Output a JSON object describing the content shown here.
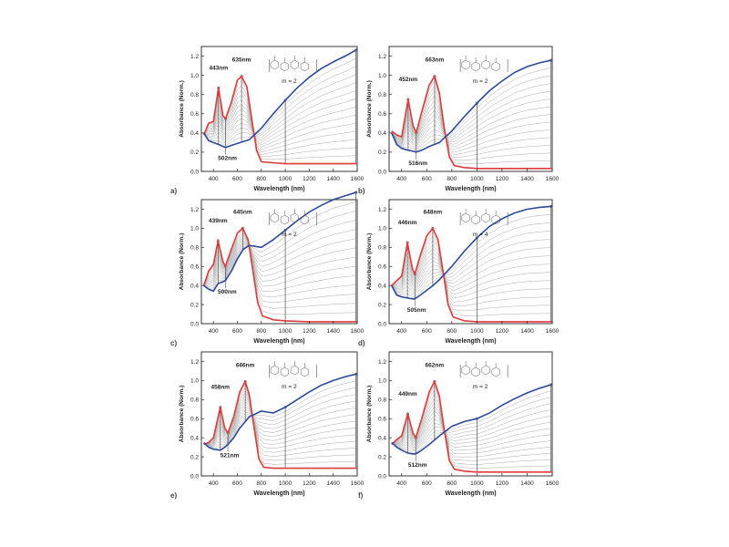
{
  "figure": {
    "panels": [
      {
        "label": "a)",
        "peak1": "443nm",
        "peak2": "635nm",
        "valley": "502nm",
        "m_label": "m = 2"
      },
      {
        "label": "b)",
        "peak1": "452nm",
        "peak2": "663nm",
        "valley": "516nm",
        "m_label": "m = 2"
      },
      {
        "label": "c)",
        "peak1": "439nm",
        "peak2": "645nm",
        "valley": "500nm",
        "m_label": "m = 2"
      },
      {
        "label": "d)",
        "peak1": "446nm",
        "peak2": "648nm",
        "valley": "505nm",
        "m_label": "m = 4"
      },
      {
        "label": "e)",
        "peak1": "458nm",
        "peak2": "666nm",
        "valley": "521nm",
        "m_label": "m = 2"
      },
      {
        "label": "f)",
        "peak1": "449nm",
        "peak2": "662nm",
        "valley": "512nm",
        "m_label": "m = 2"
      }
    ]
  },
  "chart_data": [
    {
      "type": "line",
      "xlabel": "Wavelength (nm)",
      "ylabel": "Absorbance (Norm.)",
      "xlim": [
        300,
        1600
      ],
      "ylim": [
        0,
        1.3
      ],
      "x_ticks": [
        400,
        600,
        800,
        1000,
        1200,
        1400,
        1600
      ],
      "y_ticks": [
        0.0,
        0.2,
        0.4,
        0.6,
        0.8,
        1.0,
        1.2
      ],
      "series": [
        {
          "color": "#e03a3a",
          "x": [
            320,
            360,
            400,
            443,
            480,
            502,
            550,
            600,
            635,
            680,
            720,
            760,
            800,
            900,
            1000,
            1200,
            1400,
            1600
          ],
          "y": [
            0.38,
            0.5,
            0.52,
            0.87,
            0.58,
            0.55,
            0.72,
            0.95,
            0.99,
            0.88,
            0.55,
            0.22,
            0.1,
            0.09,
            0.08,
            0.08,
            0.08,
            0.08
          ]
        },
        {
          "color": "#2c4a9a",
          "x": [
            320,
            360,
            400,
            443,
            480,
            502,
            550,
            600,
            650,
            700,
            800,
            900,
            1000,
            1100,
            1200,
            1300,
            1400,
            1500,
            1600
          ],
          "y": [
            0.4,
            0.32,
            0.3,
            0.28,
            0.26,
            0.25,
            0.27,
            0.29,
            0.31,
            0.33,
            0.45,
            0.6,
            0.74,
            0.87,
            0.98,
            1.07,
            1.14,
            1.2,
            1.27
          ]
        }
      ]
    },
    {
      "type": "line",
      "xlabel": "Wavelength (nm)",
      "ylabel": "Absorbance (Norm.)",
      "xlim": [
        300,
        1600
      ],
      "ylim": [
        0,
        1.3
      ],
      "x_ticks": [
        400,
        600,
        800,
        1000,
        1200,
        1400,
        1600
      ],
      "y_ticks": [
        0.0,
        0.2,
        0.4,
        0.6,
        0.8,
        1.0,
        1.2
      ],
      "series": [
        {
          "color": "#e03a3a",
          "x": [
            320,
            360,
            400,
            452,
            490,
            516,
            560,
            620,
            663,
            700,
            740,
            780,
            820,
            900,
            1000,
            1200,
            1400,
            1600
          ],
          "y": [
            0.42,
            0.38,
            0.36,
            0.75,
            0.48,
            0.4,
            0.62,
            0.9,
            0.99,
            0.82,
            0.45,
            0.15,
            0.06,
            0.04,
            0.03,
            0.03,
            0.03,
            0.03
          ]
        },
        {
          "color": "#2c4a9a",
          "x": [
            320,
            360,
            400,
            452,
            490,
            516,
            560,
            620,
            700,
            800,
            900,
            1000,
            1100,
            1200,
            1300,
            1400,
            1500,
            1600
          ],
          "y": [
            0.4,
            0.28,
            0.24,
            0.22,
            0.21,
            0.2,
            0.22,
            0.26,
            0.3,
            0.42,
            0.57,
            0.71,
            0.84,
            0.94,
            1.03,
            1.09,
            1.13,
            1.16
          ]
        }
      ]
    },
    {
      "type": "line",
      "xlabel": "Wavelength (nm)",
      "ylabel": "Absorbance (Norm.)",
      "xlim": [
        300,
        1600
      ],
      "ylim": [
        0,
        1.3
      ],
      "x_ticks": [
        400,
        600,
        800,
        1000,
        1200,
        1400,
        1600
      ],
      "y_ticks": [
        0.0,
        0.2,
        0.4,
        0.6,
        0.8,
        1.0,
        1.2
      ],
      "series": [
        {
          "color": "#e03a3a",
          "x": [
            320,
            360,
            400,
            439,
            480,
            500,
            550,
            600,
            645,
            690,
            730,
            770,
            810,
            900,
            1000,
            1200,
            1400,
            1600
          ],
          "y": [
            0.4,
            0.55,
            0.62,
            0.87,
            0.65,
            0.6,
            0.78,
            0.95,
            1.0,
            0.88,
            0.55,
            0.22,
            0.08,
            0.04,
            0.03,
            0.02,
            0.02,
            0.02
          ]
        },
        {
          "color": "#2c4a9a",
          "x": [
            320,
            360,
            400,
            439,
            480,
            500,
            550,
            600,
            650,
            700,
            800,
            900,
            1000,
            1100,
            1200,
            1300,
            1400,
            1500,
            1600
          ],
          "y": [
            0.4,
            0.36,
            0.34,
            0.42,
            0.44,
            0.45,
            0.55,
            0.68,
            0.78,
            0.82,
            0.8,
            0.88,
            0.98,
            1.08,
            1.17,
            1.24,
            1.3,
            1.34,
            1.38
          ]
        }
      ]
    },
    {
      "type": "line",
      "xlabel": "Wavelength (nm)",
      "ylabel": "Absorbance (Norm.)",
      "xlim": [
        300,
        1600
      ],
      "ylim": [
        0,
        1.3
      ],
      "x_ticks": [
        400,
        600,
        800,
        1000,
        1200,
        1400,
        1600
      ],
      "y_ticks": [
        0.0,
        0.2,
        0.4,
        0.6,
        0.8,
        1.0,
        1.2
      ],
      "series": [
        {
          "color": "#e03a3a",
          "x": [
            320,
            360,
            400,
            446,
            485,
            505,
            550,
            600,
            648,
            690,
            730,
            770,
            810,
            900,
            1000,
            1200,
            1400,
            1600
          ],
          "y": [
            0.4,
            0.45,
            0.5,
            0.85,
            0.58,
            0.52,
            0.72,
            0.92,
            1.0,
            0.88,
            0.55,
            0.2,
            0.07,
            0.03,
            0.02,
            0.02,
            0.02,
            0.02
          ]
        },
        {
          "color": "#2c4a9a",
          "x": [
            320,
            360,
            400,
            446,
            485,
            505,
            550,
            600,
            650,
            700,
            800,
            900,
            1000,
            1100,
            1200,
            1300,
            1400,
            1500,
            1600
          ],
          "y": [
            0.4,
            0.3,
            0.28,
            0.27,
            0.26,
            0.26,
            0.3,
            0.35,
            0.4,
            0.46,
            0.6,
            0.76,
            0.9,
            1.02,
            1.1,
            1.16,
            1.2,
            1.22,
            1.23
          ]
        }
      ]
    },
    {
      "type": "line",
      "xlabel": "Wavelength (nm)",
      "ylabel": "Absorbance (Norm.)",
      "xlim": [
        300,
        1600
      ],
      "ylim": [
        0,
        1.3
      ],
      "x_ticks": [
        400,
        600,
        800,
        1000,
        1200,
        1400,
        1600
      ],
      "y_ticks": [
        0.0,
        0.2,
        0.4,
        0.6,
        0.8,
        1.0,
        1.2
      ],
      "series": [
        {
          "color": "#e03a3a",
          "x": [
            320,
            360,
            400,
            458,
            495,
            521,
            570,
            620,
            666,
            700,
            740,
            780,
            820,
            900,
            1000,
            1200,
            1400,
            1600
          ],
          "y": [
            0.33,
            0.35,
            0.4,
            0.72,
            0.5,
            0.45,
            0.62,
            0.88,
            0.99,
            0.85,
            0.5,
            0.18,
            0.09,
            0.08,
            0.08,
            0.08,
            0.08,
            0.08
          ]
        },
        {
          "color": "#2c4a9a",
          "x": [
            320,
            360,
            400,
            458,
            495,
            521,
            570,
            620,
            700,
            800,
            900,
            1000,
            1100,
            1200,
            1300,
            1400,
            1500,
            1600
          ],
          "y": [
            0.35,
            0.3,
            0.28,
            0.27,
            0.3,
            0.33,
            0.4,
            0.5,
            0.62,
            0.68,
            0.66,
            0.72,
            0.8,
            0.88,
            0.95,
            1.0,
            1.04,
            1.07
          ]
        }
      ]
    },
    {
      "type": "line",
      "xlabel": "Wavelength (nm)",
      "ylabel": "Absorbance (Norm.)",
      "xlim": [
        300,
        1600
      ],
      "ylim": [
        0,
        1.3
      ],
      "x_ticks": [
        400,
        600,
        800,
        1000,
        1200,
        1400,
        1600
      ],
      "y_ticks": [
        0.0,
        0.2,
        0.4,
        0.6,
        0.8,
        1.0,
        1.2
      ],
      "series": [
        {
          "color": "#e03a3a",
          "x": [
            320,
            360,
            400,
            449,
            490,
            512,
            560,
            620,
            662,
            700,
            740,
            780,
            820,
            900,
            1000,
            1200,
            1400,
            1600
          ],
          "y": [
            0.33,
            0.38,
            0.42,
            0.65,
            0.45,
            0.4,
            0.6,
            0.88,
            0.99,
            0.84,
            0.48,
            0.16,
            0.07,
            0.05,
            0.04,
            0.04,
            0.04,
            0.04
          ]
        },
        {
          "color": "#2c4a9a",
          "x": [
            320,
            360,
            400,
            449,
            490,
            512,
            560,
            620,
            700,
            800,
            900,
            1000,
            1100,
            1200,
            1300,
            1400,
            1500,
            1600
          ],
          "y": [
            0.35,
            0.3,
            0.27,
            0.24,
            0.23,
            0.23,
            0.27,
            0.33,
            0.42,
            0.52,
            0.57,
            0.6,
            0.66,
            0.74,
            0.81,
            0.87,
            0.92,
            0.96
          ]
        }
      ]
    }
  ]
}
